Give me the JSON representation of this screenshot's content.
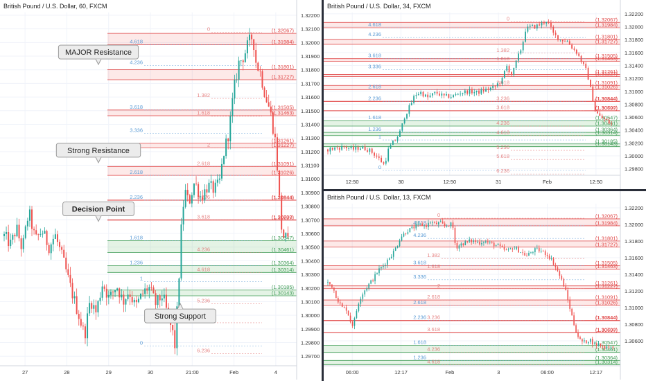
{
  "colors": {
    "up": "#26a69a",
    "down": "#ef5350",
    "resistance_line": "#e04848",
    "resistance_zone": "rgba(239,83,80,0.13)",
    "support_line": "#3e9b55",
    "support_zone": "rgba(76,175,80,0.15)",
    "fib_blue": "#5b9bd5",
    "fib_red": "#e06666",
    "grid": "#f0f3fa",
    "separator": "#2a2e39"
  },
  "chart_data": [
    {
      "type": "candlestick",
      "title": "British Pound / U.S. Dollar, 60, FXCM",
      "ylim": [
        1.2963,
        1.3222
      ],
      "y_ticks": [
        "1.32200",
        "1.32100",
        "1.32000",
        "1.31900",
        "1.31800",
        "1.31700",
        "1.31600",
        "1.31500",
        "1.31400",
        "1.31300",
        "1.31200",
        "1.31100",
        "1.31000",
        "1.30900",
        "1.30800",
        "1.30700",
        "1.30600",
        "1.30500",
        "1.30400",
        "1.30300",
        "1.30200",
        "1.30100",
        "1.30000",
        "1.29900",
        "1.29800",
        "1.29700"
      ],
      "x_ticks": [
        "27",
        "28",
        "29",
        "30",
        "21:00",
        "Feb",
        "4"
      ],
      "levels": [
        {
          "label": "(1.32067)",
          "price": 1.32067,
          "kind": "resistance"
        },
        {
          "label": "(1.31984)",
          "price": 1.31984,
          "kind": "resistance"
        },
        {
          "label": "(1.31801)",
          "price": 1.31801,
          "kind": "resistance"
        },
        {
          "label": "(1.31727)",
          "price": 1.31727,
          "kind": "resistance"
        },
        {
          "label": "(1.31505)",
          "price": 1.31505,
          "kind": "resistance"
        },
        {
          "label": "(1.31463)",
          "price": 1.31463,
          "kind": "resistance"
        },
        {
          "label": "(1.31261)",
          "price": 1.31261,
          "kind": "resistance"
        },
        {
          "label": "(1.31227)",
          "price": 1.31227,
          "kind": "resistance"
        },
        {
          "label": "(1.31091)",
          "price": 1.31091,
          "kind": "resistance"
        },
        {
          "label": "(1.31026)",
          "price": 1.31026,
          "kind": "resistance"
        },
        {
          "label": "(1.30844)",
          "price": 1.30844,
          "kind": "pivot"
        },
        {
          "label": "(1.30700)",
          "price": 1.307,
          "kind": "resistance"
        },
        {
          "label": "(1.30697)",
          "price": 1.30697,
          "kind": "resistance"
        },
        {
          "label": "(1.30547)",
          "price": 1.30547,
          "kind": "support"
        },
        {
          "label": "(1.30461)",
          "price": 1.30461,
          "kind": "support"
        },
        {
          "label": "(1.30364)",
          "price": 1.30364,
          "kind": "support"
        },
        {
          "label": "(1.30314)",
          "price": 1.30314,
          "kind": "support"
        },
        {
          "label": "(1.30185)",
          "price": 1.30185,
          "kind": "support"
        },
        {
          "label": "(1.30143)",
          "price": 1.30143,
          "kind": "support"
        }
      ],
      "fib_levels": [
        {
          "label": "0",
          "price": 1.32075,
          "color": "red"
        },
        {
          "label": "4.618",
          "price": 1.31984,
          "color": "blue"
        },
        {
          "label": "4.236",
          "price": 1.31832,
          "color": "blue"
        },
        {
          "label": "3.618",
          "price": 1.31505,
          "color": "blue"
        },
        {
          "label": "3.336",
          "price": 1.31335,
          "color": "blue"
        },
        {
          "label": "2.618",
          "price": 1.31026,
          "color": "blue"
        },
        {
          "label": "2.236",
          "price": 1.30844,
          "color": "blue"
        },
        {
          "label": "1.618",
          "price": 1.30547,
          "color": "blue"
        },
        {
          "label": "1.236",
          "price": 1.30364,
          "color": "blue"
        },
        {
          "label": "1",
          "price": 1.30246,
          "color": "blue"
        },
        {
          "label": "0",
          "price": 1.29775,
          "color": "blue"
        },
        {
          "label": "1.382",
          "price": 1.3159,
          "color": "red"
        },
        {
          "label": "1.618",
          "price": 1.3146,
          "color": "red"
        },
        {
          "label": "2",
          "price": 1.31227,
          "color": "red"
        },
        {
          "label": "2.618",
          "price": 1.31091,
          "color": "red"
        },
        {
          "label": "3.236",
          "price": 1.30844,
          "color": "red"
        },
        {
          "label": "3.618",
          "price": 1.307,
          "color": "red"
        },
        {
          "label": "4.236",
          "price": 1.30461,
          "color": "red"
        },
        {
          "label": "4.618",
          "price": 1.30314,
          "color": "red"
        },
        {
          "label": "5.236",
          "price": 1.30085,
          "color": "red"
        },
        {
          "label": "5.618",
          "price": 1.29945,
          "color": "red"
        },
        {
          "label": "6.236",
          "price": 1.2972,
          "color": "red"
        }
      ],
      "annotations": [
        {
          "text": "MAJOR Resistance",
          "price": 1.3193,
          "bold": false
        },
        {
          "text": "Strong Resistance",
          "price": 1.3121,
          "bold": false
        },
        {
          "text": "Decision Point",
          "price": 1.3078,
          "bold": true
        },
        {
          "text": "Strong Support",
          "price": 1.29995,
          "bold": false
        }
      ],
      "price_path": [
        [
          0,
          1.3058
        ],
        [
          8,
          1.3052
        ],
        [
          15,
          1.3064
        ],
        [
          22,
          1.3048
        ],
        [
          30,
          1.3076
        ],
        [
          38,
          1.3055
        ],
        [
          46,
          1.3062
        ],
        [
          55,
          1.305
        ],
        [
          62,
          1.3059
        ],
        [
          72,
          1.304
        ],
        [
          80,
          1.3022
        ],
        [
          90,
          1.3002
        ],
        [
          98,
          1.2985
        ],
        [
          105,
          1.3012
        ],
        [
          112,
          1.3002
        ],
        [
          120,
          1.3024
        ],
        [
          128,
          1.3012
        ],
        [
          137,
          1.3022
        ],
        [
          145,
          1.301
        ],
        [
          152,
          1.3018
        ],
        [
          160,
          1.3006
        ],
        [
          168,
          1.3015
        ],
        [
          176,
          1.3021
        ],
        [
          185,
          1.3008
        ],
        [
          193,
          1.3015
        ],
        [
          200,
          1.2998
        ],
        [
          205,
          1.2988
        ],
        [
          208,
          1.2978
        ],
        [
          212,
          1.3015
        ],
        [
          216,
          1.3065
        ],
        [
          220,
          1.3092
        ],
        [
          225,
          1.3082
        ],
        [
          232,
          1.3098
        ],
        [
          240,
          1.3086
        ],
        [
          248,
          1.3095
        ],
        [
          256,
          1.3092
        ],
        [
          262,
          1.3096
        ],
        [
          268,
          1.312
        ],
        [
          274,
          1.3135
        ],
        [
          280,
          1.3165
        ],
        [
          286,
          1.3185
        ],
        [
          292,
          1.319
        ],
        [
          298,
          1.32
        ],
        [
          303,
          1.3205
        ],
        [
          307,
          1.3185
        ],
        [
          312,
          1.3178
        ],
        [
          318,
          1.3162
        ],
        [
          324,
          1.315
        ],
        [
          330,
          1.313
        ],
        [
          334,
          1.31
        ],
        [
          337,
          1.3068
        ],
        [
          340,
          1.3058
        ],
        [
          344,
          1.3056
        ],
        [
          348,
          1.305
        ]
      ]
    },
    {
      "type": "candlestick",
      "title": "British Pound / U.S. Dollar, 34, FXCM",
      "ylim": [
        1.297,
        1.3222
      ],
      "y_ticks": [
        "1.32200",
        "1.32000",
        "1.31800",
        "1.31600",
        "1.31400",
        "1.31200",
        "1.31000",
        "1.30800",
        "1.30600",
        "1.30400",
        "1.30200",
        "1.30000",
        "1.29800"
      ],
      "x_ticks": [
        "12:50",
        "30",
        "12:50",
        "31",
        "Feb",
        "12:50"
      ],
      "price_path": [
        [
          0,
          1.301
        ],
        [
          10,
          1.3012
        ],
        [
          20,
          1.3014
        ],
        [
          30,
          1.301
        ],
        [
          40,
          1.3013
        ],
        [
          50,
          1.3009
        ],
        [
          60,
          1.2998
        ],
        [
          68,
          1.2986
        ],
        [
          73,
          1.301
        ],
        [
          78,
          1.302
        ],
        [
          82,
          1.3025
        ],
        [
          88,
          1.304
        ],
        [
          92,
          1.306
        ],
        [
          96,
          1.307
        ],
        [
          100,
          1.308
        ],
        [
          105,
          1.3095
        ],
        [
          112,
          1.3098
        ],
        [
          120,
          1.309
        ],
        [
          130,
          1.3098
        ],
        [
          140,
          1.3092
        ],
        [
          150,
          1.3092
        ],
        [
          160,
          1.3098
        ],
        [
          170,
          1.31
        ],
        [
          180,
          1.3098
        ],
        [
          190,
          1.3102
        ],
        [
          200,
          1.3106
        ],
        [
          210,
          1.3118
        ],
        [
          215,
          1.314
        ],
        [
          222,
          1.3125
        ],
        [
          228,
          1.315
        ],
        [
          234,
          1.317
        ],
        [
          238,
          1.3195
        ],
        [
          244,
          1.32
        ],
        [
          250,
          1.32
        ],
        [
          258,
          1.3205
        ],
        [
          264,
          1.321
        ],
        [
          272,
          1.3188
        ],
        [
          280,
          1.318
        ],
        [
          288,
          1.3178
        ],
        [
          294,
          1.3168
        ],
        [
          300,
          1.316
        ],
        [
          306,
          1.3145
        ],
        [
          312,
          1.313
        ],
        [
          318,
          1.3095
        ],
        [
          322,
          1.307
        ],
        [
          328,
          1.306
        ],
        [
          334,
          1.3056
        ],
        [
          340,
          1.305
        ],
        [
          344,
          1.3048
        ]
      ]
    },
    {
      "type": "candlestick",
      "title": "British Pound / U.S. Dollar, 13, FXCM",
      "ylim": [
        1.303,
        1.3225
      ],
      "y_ticks": [
        "1.32200",
        "1.32000",
        "1.31800",
        "1.31600",
        "1.31400",
        "1.31200",
        "1.31000",
        "1.30800",
        "1.30600"
      ],
      "x_ticks": [
        "06:00",
        "12:17",
        "Feb",
        "3",
        "06:00",
        "12:17"
      ],
      "price_path": [
        [
          0,
          1.313
        ],
        [
          6,
          1.3125
        ],
        [
          12,
          1.311
        ],
        [
          18,
          1.31
        ],
        [
          24,
          1.3098
        ],
        [
          28,
          1.3085
        ],
        [
          32,
          1.3078
        ],
        [
          36,
          1.3095
        ],
        [
          40,
          1.311
        ],
        [
          46,
          1.312
        ],
        [
          52,
          1.3128
        ],
        [
          58,
          1.3135
        ],
        [
          64,
          1.3145
        ],
        [
          70,
          1.315
        ],
        [
          76,
          1.3158
        ],
        [
          82,
          1.3165
        ],
        [
          88,
          1.3175
        ],
        [
          92,
          1.3185
        ],
        [
          96,
          1.3188
        ],
        [
          100,
          1.3192
        ],
        [
          106,
          1.3195
        ],
        [
          112,
          1.3198
        ],
        [
          118,
          1.32
        ],
        [
          124,
          1.3198
        ],
        [
          130,
          1.3203
        ],
        [
          136,
          1.32
        ],
        [
          142,
          1.3202
        ],
        [
          148,
          1.3198
        ],
        [
          154,
          1.32
        ],
        [
          158,
          1.32
        ],
        [
          162,
          1.3172
        ],
        [
          168,
          1.3176
        ],
        [
          174,
          1.3178
        ],
        [
          180,
          1.318
        ],
        [
          186,
          1.318
        ],
        [
          192,
          1.3178
        ],
        [
          198,
          1.318
        ],
        [
          204,
          1.3178
        ],
        [
          210,
          1.3176
        ],
        [
          216,
          1.3174
        ],
        [
          222,
          1.317
        ],
        [
          228,
          1.3168
        ],
        [
          234,
          1.3172
        ],
        [
          240,
          1.317
        ],
        [
          246,
          1.3166
        ],
        [
          252,
          1.3162
        ],
        [
          258,
          1.3167
        ],
        [
          264,
          1.317
        ],
        [
          270,
          1.3168
        ],
        [
          276,
          1.3165
        ],
        [
          282,
          1.316
        ],
        [
          288,
          1.315
        ],
        [
          294,
          1.3138
        ],
        [
          300,
          1.3125
        ],
        [
          304,
          1.311
        ],
        [
          308,
          1.3095
        ],
        [
          312,
          1.308
        ],
        [
          316,
          1.3068
        ],
        [
          320,
          1.306
        ],
        [
          326,
          1.3058
        ],
        [
          332,
          1.3062
        ],
        [
          338,
          1.3055
        ],
        [
          344,
          1.3056
        ],
        [
          350,
          1.3052
        ],
        [
          356,
          1.3054
        ],
        [
          362,
          1.305
        ]
      ]
    }
  ]
}
